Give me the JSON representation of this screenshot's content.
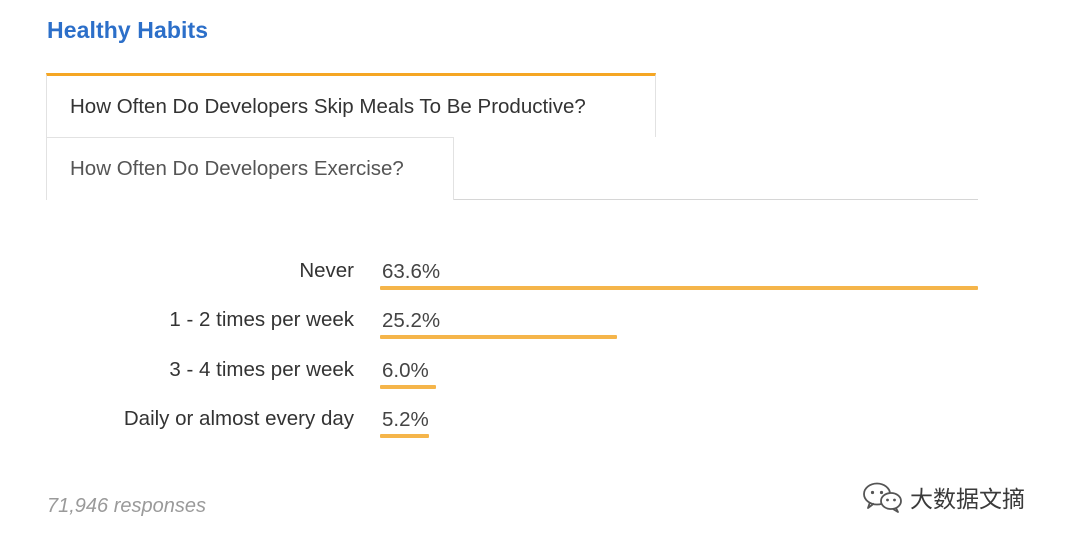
{
  "section_title": "Healthy Habits",
  "tabs": [
    {
      "label": "How Often Do Developers Skip Meals To Be Productive?",
      "active": true
    },
    {
      "label": "How Often Do Developers Exercise?",
      "active": false
    }
  ],
  "colors": {
    "title": "#2c6fc9",
    "accent": "#f5a623",
    "bar": "#f5b54a"
  },
  "chart_data": {
    "type": "bar",
    "orientation": "horizontal",
    "categories": [
      "Never",
      "1 - 2 times per week",
      "3 - 4 times per week",
      "Daily or almost every day"
    ],
    "values": [
      63.6,
      25.2,
      6.0,
      5.2
    ],
    "value_labels": [
      "63.6%",
      "25.2%",
      "6.0%",
      "5.2%"
    ],
    "unit": "%",
    "legend": "none",
    "grid": false
  },
  "footer": {
    "responses": "71,946 responses"
  },
  "watermark": {
    "text": "大数据文摘",
    "icon": "wechat-icon"
  }
}
